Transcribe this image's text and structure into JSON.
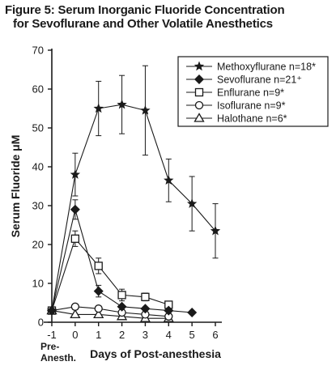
{
  "header": {
    "line1": "Figure 5: Serum Inorganic Fluoride Concentration",
    "line2": "for Sevoflurane and Other Volatile Anesthetics"
  },
  "chart_data": {
    "type": "line",
    "title": "Figure 5: Serum Inorganic Fluoride Concentration for Sevoflurane and Other Volatile Anesthetics",
    "xlabel": "Days of Post-anesthesia",
    "ylabel": "Serum Fluoride μM",
    "xlim": [
      -1,
      6
    ],
    "ylim": [
      0,
      70
    ],
    "x_ticks": [
      -1,
      0,
      1,
      2,
      3,
      4,
      5,
      6
    ],
    "x_tick_labels": [
      "-1",
      "0",
      "1",
      "2",
      "3",
      "4",
      "5",
      "6"
    ],
    "x_extra_label": [
      "Pre-",
      "Anesth."
    ],
    "y_ticks": [
      0,
      10,
      20,
      30,
      40,
      50,
      60,
      70
    ],
    "legend_position": "top-right",
    "series": [
      {
        "name": "Methoxyflurane n=18*",
        "marker": "star",
        "x": [
          -1,
          0,
          1,
          2,
          3,
          4,
          5,
          6
        ],
        "y": [
          3,
          38,
          55,
          56,
          54.5,
          36.5,
          30.5,
          23.5
        ],
        "err": [
          0,
          5.5,
          7,
          7.5,
          11.5,
          5.5,
          7,
          7
        ]
      },
      {
        "name": "Sevoflurane n=21⁺",
        "marker": "diamond",
        "x": [
          -1,
          0,
          1,
          2,
          3,
          4,
          5
        ],
        "y": [
          3,
          29,
          8,
          4,
          3.5,
          3,
          2.5
        ],
        "err": [
          0,
          2.5,
          1.5,
          0,
          0,
          0,
          0
        ]
      },
      {
        "name": "Enflurane n=9*",
        "marker": "square",
        "x": [
          -1,
          0,
          1,
          2,
          3,
          4
        ],
        "y": [
          3,
          21.5,
          14.5,
          7,
          6.5,
          4.5
        ],
        "err": [
          0,
          2,
          2,
          1.5,
          1,
          0
        ]
      },
      {
        "name": "Isoflurane n=9*",
        "marker": "circle",
        "x": [
          -1,
          0,
          1,
          2,
          3,
          4
        ],
        "y": [
          3,
          4,
          3.5,
          2.5,
          2,
          1.5
        ],
        "err": [
          0,
          0,
          0,
          0,
          0,
          0
        ]
      },
      {
        "name": "Halothane n=6*",
        "marker": "triangle",
        "x": [
          -1,
          0,
          1,
          2,
          3,
          4
        ],
        "y": [
          3,
          2,
          2,
          1.5,
          1,
          1
        ],
        "err": [
          0,
          0,
          0,
          0,
          0,
          0
        ]
      }
    ]
  }
}
